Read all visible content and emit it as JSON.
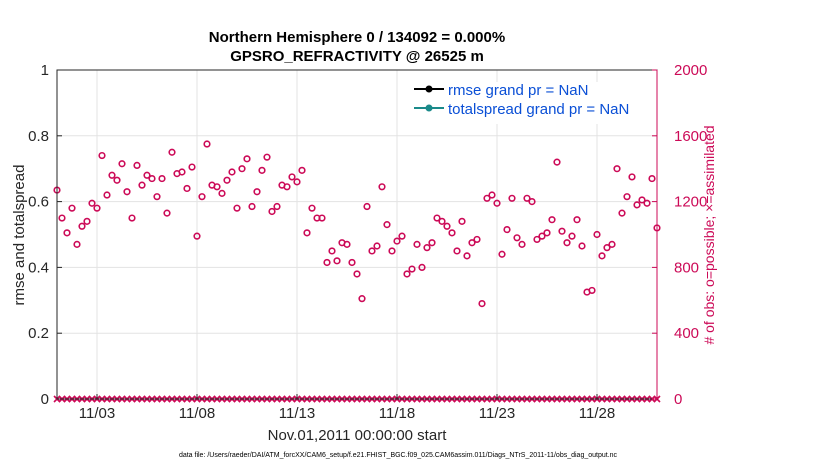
{
  "chart_data": {
    "type": "scatter",
    "title": "Northern Hemisphere 0 / 134092 = 0.000%",
    "subtitle": "GPSRO_REFRACTIVITY @ 26525 m",
    "xlabel": "Nov.01,2011 00:00:00 start",
    "ylabel": "rmse and totalspread",
    "ylabel_right": "# of obs: o=possible; ×=assimilated",
    "x_ticks": [
      "11/03",
      "11/08",
      "11/13",
      "11/18",
      "11/23",
      "11/28"
    ],
    "x_tick_days": [
      3,
      8,
      13,
      18,
      23,
      28
    ],
    "xlim": [
      1,
      31
    ],
    "ylim": [
      0,
      1
    ],
    "y_ticks": [
      "0",
      "0.2",
      "0.4",
      "0.6",
      "0.8",
      "1"
    ],
    "y_tick_values": [
      0,
      0.2,
      0.4,
      0.6,
      0.8,
      1
    ],
    "ylim_right": [
      0,
      2000
    ],
    "y_ticks_right": [
      "0",
      "400",
      "800",
      "1200",
      "1600",
      "2000"
    ],
    "y_tick_values_right": [
      0,
      400,
      800,
      1200,
      1600,
      2000
    ],
    "legend": [
      {
        "label": "rmse grand pr = NaN",
        "color": "#000000"
      },
      {
        "label": "totalspread grand pr = NaN",
        "color": "#1a8a8a"
      }
    ],
    "series": [
      {
        "name": "possible observations",
        "marker": "circle",
        "color": "#cc0a57",
        "x": [
          1.0,
          1.25,
          1.5,
          1.75,
          2.0,
          2.25,
          2.5,
          2.75,
          3.0,
          3.25,
          3.5,
          3.75,
          4.0,
          4.25,
          4.5,
          4.75,
          5.0,
          5.25,
          5.5,
          5.75,
          6.0,
          6.25,
          6.5,
          6.75,
          7.0,
          7.25,
          7.5,
          7.75,
          8.0,
          8.25,
          8.5,
          8.75,
          9.0,
          9.25,
          9.5,
          9.75,
          10.0,
          10.25,
          10.5,
          10.75,
          11.0,
          11.25,
          11.5,
          11.75,
          12.0,
          12.25,
          12.5,
          12.75,
          13.0,
          13.25,
          13.5,
          13.75,
          14.0,
          14.25,
          14.5,
          14.75,
          15.0,
          15.25,
          15.5,
          15.75,
          16.0,
          16.25,
          16.5,
          16.75,
          17.0,
          17.25,
          17.5,
          17.75,
          18.0,
          18.25,
          18.5,
          18.75,
          19.0,
          19.25,
          19.5,
          19.75,
          20.0,
          20.25,
          20.5,
          20.75,
          21.0,
          21.25,
          21.5,
          21.75,
          22.0,
          22.25,
          22.5,
          22.75,
          23.0,
          23.25,
          23.5,
          23.75,
          24.0,
          24.25,
          24.5,
          24.75,
          25.0,
          25.25,
          25.5,
          25.75,
          26.0,
          26.25,
          26.5,
          26.75,
          27.0,
          27.25,
          27.5,
          27.75,
          28.0,
          28.25,
          28.5,
          28.75,
          29.0,
          29.25,
          29.5,
          29.75,
          30.0,
          30.25,
          30.5,
          30.75,
          31.0
        ],
        "values": [
          1270,
          1100,
          1010,
          1160,
          940,
          1050,
          1080,
          1190,
          1160,
          1480,
          1240,
          1360,
          1330,
          1430,
          1260,
          1100,
          1420,
          1300,
          1360,
          1340,
          1230,
          1340,
          1130,
          1500,
          1370,
          1380,
          1280,
          1410,
          990,
          1230,
          1550,
          1300,
          1290,
          1250,
          1330,
          1380,
          1160,
          1400,
          1460,
          1170,
          1260,
          1390,
          1470,
          1140,
          1170,
          1300,
          1290,
          1350,
          1320,
          1390,
          1010,
          1160,
          1100,
          1100,
          830,
          900,
          840,
          950,
          940,
          830,
          760,
          610,
          1170,
          900,
          930,
          1290,
          1060,
          900,
          960,
          990,
          760,
          790,
          940,
          800,
          920,
          950,
          1100,
          1080,
          1050,
          1010,
          900,
          1080,
          870,
          950,
          970,
          580,
          1220,
          1240,
          1190,
          880,
          1030,
          1220,
          980,
          940,
          1220,
          1200,
          970,
          990,
          1010,
          1090,
          1440,
          1020,
          950,
          990,
          1090,
          930,
          650,
          660,
          1000,
          870,
          920,
          940,
          1400,
          1130,
          1230,
          1350,
          1180,
          1210,
          1190,
          1340,
          1040
        ]
      },
      {
        "name": "assimilated observations",
        "marker": "x",
        "color": "#cc0a57",
        "x": [
          1.0,
          1.25,
          1.5,
          1.75,
          2.0,
          2.25,
          2.5,
          2.75,
          3.0,
          3.25,
          3.5,
          3.75,
          4.0,
          4.25,
          4.5,
          4.75,
          5.0,
          5.25,
          5.5,
          5.75,
          6.0,
          6.25,
          6.5,
          6.75,
          7.0,
          7.25,
          7.5,
          7.75,
          8.0,
          8.25,
          8.5,
          8.75,
          9.0,
          9.25,
          9.5,
          9.75,
          10.0,
          10.25,
          10.5,
          10.75,
          11.0,
          11.25,
          11.5,
          11.75,
          12.0,
          12.25,
          12.5,
          12.75,
          13.0,
          13.25,
          13.5,
          13.75,
          14.0,
          14.25,
          14.5,
          14.75,
          15.0,
          15.25,
          15.5,
          15.75,
          16.0,
          16.25,
          16.5,
          16.75,
          17.0,
          17.25,
          17.5,
          17.75,
          18.0,
          18.25,
          18.5,
          18.75,
          19.0,
          19.25,
          19.5,
          19.75,
          20.0,
          20.25,
          20.5,
          20.75,
          21.0,
          21.25,
          21.5,
          21.75,
          22.0,
          22.25,
          22.5,
          22.75,
          23.0,
          23.25,
          23.5,
          23.75,
          24.0,
          24.25,
          24.5,
          24.75,
          25.0,
          25.25,
          25.5,
          25.75,
          26.0,
          26.25,
          26.5,
          26.75,
          27.0,
          27.25,
          27.5,
          27.75,
          28.0,
          28.25,
          28.5,
          28.75,
          29.0,
          29.25,
          29.5,
          29.75,
          30.0,
          30.25,
          30.5,
          30.75,
          31.0
        ],
        "values": [
          0,
          0,
          0,
          0,
          0,
          0,
          0,
          0,
          0,
          0,
          0,
          0,
          0,
          0,
          0,
          0,
          0,
          0,
          0,
          0,
          0,
          0,
          0,
          0,
          0,
          0,
          0,
          0,
          0,
          0,
          0,
          0,
          0,
          0,
          0,
          0,
          0,
          0,
          0,
          0,
          0,
          0,
          0,
          0,
          0,
          0,
          0,
          0,
          0,
          0,
          0,
          0,
          0,
          0,
          0,
          0,
          0,
          0,
          0,
          0,
          0,
          0,
          0,
          0,
          0,
          0,
          0,
          0,
          0,
          0,
          0,
          0,
          0,
          0,
          0,
          0,
          0,
          0,
          0,
          0,
          0,
          0,
          0,
          0,
          0,
          0,
          0,
          0,
          0,
          0,
          0,
          0,
          0,
          0,
          0,
          0,
          0,
          0,
          0,
          0,
          0,
          0,
          0,
          0,
          0,
          0,
          0,
          0,
          0,
          0,
          0,
          0,
          0,
          0,
          0,
          0,
          0,
          0,
          0,
          0,
          0
        ]
      }
    ],
    "footnote": "data file: /Users/raeder/DAI/ATM_forcXX/CAM6_setup/f.e21.FHIST_BGC.f09_025.CAM6assim.011/Diags_NTrS_2011-11/obs_diag_output.nc"
  },
  "colors": {
    "right_axis": "#cc0a57",
    "legend_text": "#0a4fd6",
    "rmse_line": "#000000",
    "spread_line": "#1a8a8a"
  }
}
